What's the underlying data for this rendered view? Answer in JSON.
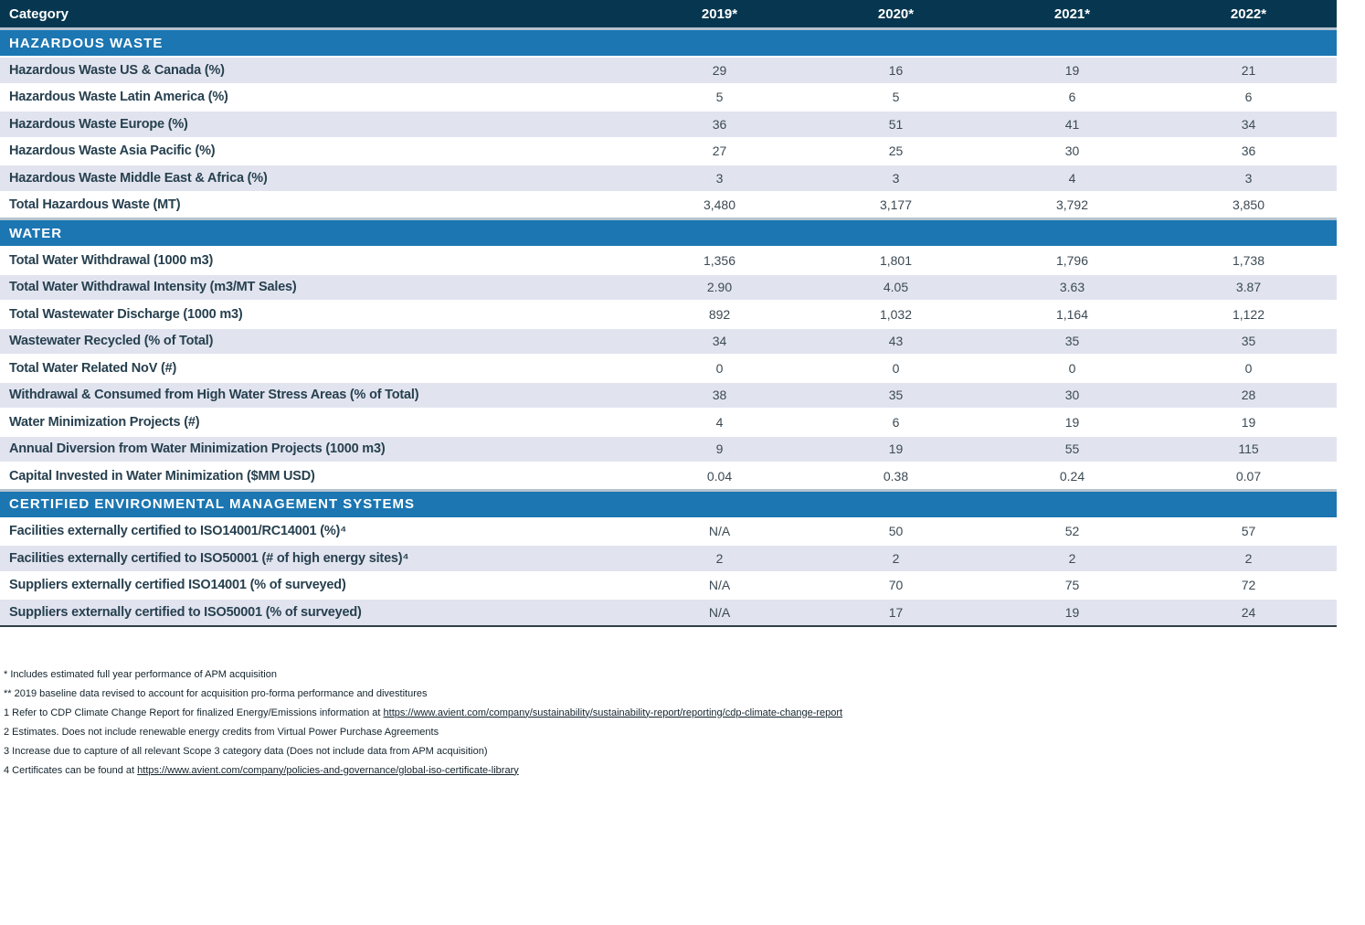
{
  "table": {
    "header": {
      "category": "Category",
      "years": [
        "2019*",
        "2020*",
        "2021*",
        "2022*"
      ]
    },
    "sections": [
      {
        "title": "HAZARDOUS WASTE",
        "rows": [
          {
            "label": "Hazardous Waste US & Canada (%)",
            "values": [
              "29",
              "16",
              "19",
              "21"
            ]
          },
          {
            "label": "Hazardous Waste Latin America (%)",
            "values": [
              "5",
              "5",
              "6",
              "6"
            ]
          },
          {
            "label": "Hazardous Waste Europe (%)",
            "values": [
              "36",
              "51",
              "41",
              "34"
            ]
          },
          {
            "label": "Hazardous Waste Asia Pacific (%)",
            "values": [
              "27",
              "25",
              "30",
              "36"
            ]
          },
          {
            "label": "Hazardous Waste Middle East & Africa (%)",
            "values": [
              "3",
              "3",
              "4",
              "3"
            ]
          },
          {
            "label": "Total Hazardous Waste (MT)",
            "values": [
              "3,480",
              "3,177",
              "3,792",
              "3,850"
            ]
          }
        ]
      },
      {
        "title": "WATER",
        "rows": [
          {
            "label": "Total Water Withdrawal (1000 m3)",
            "values": [
              "1,356",
              "1,801",
              "1,796",
              "1,738"
            ]
          },
          {
            "label": "Total Water Withdrawal Intensity (m3/MT Sales)",
            "values": [
              "2.90",
              "4.05",
              "3.63",
              "3.87"
            ]
          },
          {
            "label": "Total Wastewater Discharge (1000 m3)",
            "values": [
              "892",
              "1,032",
              "1,164",
              "1,122"
            ]
          },
          {
            "label": "Wastewater Recycled (% of Total)",
            "values": [
              "34",
              "43",
              "35",
              "35"
            ]
          },
          {
            "label": "Total Water Related NoV (#)",
            "values": [
              "0",
              "0",
              "0",
              "0"
            ]
          },
          {
            "label": "Withdrawal & Consumed from High Water Stress Areas (% of Total)",
            "values": [
              "38",
              "35",
              "30",
              "28"
            ]
          },
          {
            "label": "Water Minimization Projects (#)",
            "values": [
              "4",
              "6",
              "19",
              "19"
            ]
          },
          {
            "label": "Annual Diversion from Water Minimization Projects (1000 m3)",
            "values": [
              "9",
              "19",
              "55",
              "115"
            ]
          },
          {
            "label": "Capital Invested in Water Minimization ($MM USD)",
            "values": [
              "0.04",
              "0.38",
              "0.24",
              "0.07"
            ]
          }
        ]
      },
      {
        "title": "CERTIFIED ENVIRONMENTAL MANAGEMENT SYSTEMS",
        "rows": [
          {
            "label": "Facilities externally certified to ISO14001/RC14001 (%)⁴",
            "values": [
              "N/A",
              "50",
              "52",
              "57"
            ]
          },
          {
            "label": "Facilities externally certified to ISO50001 (# of high energy sites)⁴",
            "values": [
              "2",
              "2",
              "2",
              "2"
            ]
          },
          {
            "label": "Suppliers externally certified ISO14001 (% of surveyed)",
            "values": [
              "N/A",
              "70",
              "75",
              "72"
            ]
          },
          {
            "label": "Suppliers externally certified to ISO50001 (% of surveyed)",
            "values": [
              "N/A",
              "17",
              "19",
              "24"
            ]
          }
        ]
      }
    ]
  },
  "footnotes": [
    {
      "text": "* Includes estimated full year performance of APM acquisition"
    },
    {
      "text": "** 2019 baseline data revised to account for acquisition pro-forma performance and divestitures"
    },
    {
      "prefix": "1 Refer to CDP Climate Change Report for finalized Energy/Emissions information at ",
      "link": "https://www.avient.com/company/sustainability/sustainability-report/reporting/cdp-climate-change-report"
    },
    {
      "text": "2 Estimates. Does not include renewable energy credits from Virtual Power Purchase Agreements"
    },
    {
      "text": "3 Increase due to capture of all relevant Scope 3 category data (Does not include data from APM acquisition)"
    },
    {
      "prefix": "4 Certificates can be found at ",
      "link": "https://www.avient.com/company/policies-and-governance/global-iso-certificate-library"
    }
  ],
  "colors": {
    "header_bg": "#073750",
    "section_bg": "#1b76b2",
    "separator_line": "#b4c3ce",
    "stripe_bg": "#e1e4ef",
    "label_text": "#27404f",
    "value_text": "#3c4a54",
    "bottom_border": "#333f47"
  }
}
